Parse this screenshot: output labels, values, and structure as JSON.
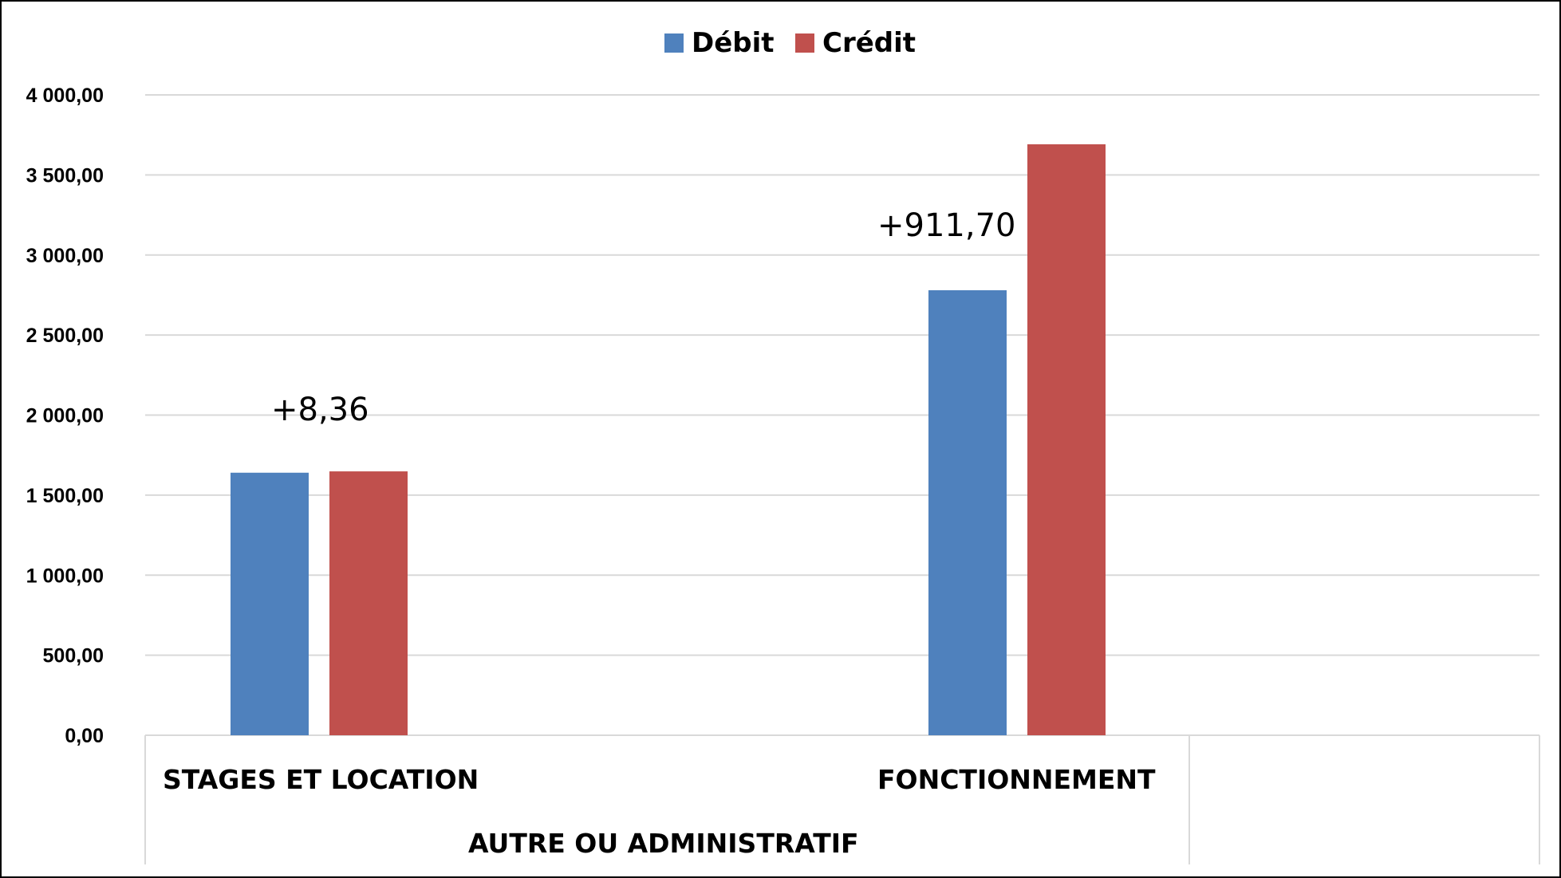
{
  "chart_data": {
    "type": "bar",
    "categories": [
      "STAGES ET  LOCATION",
      "FONCTIONNEMENT"
    ],
    "group_label": "AUTRE  OU  ADMINISTRATIF",
    "series": [
      {
        "name": "Débit",
        "color": "#4f81bd",
        "values": [
          1640,
          2780
        ]
      },
      {
        "name": "Crédit",
        "color": "#c0504d",
        "values": [
          1648.36,
          3691.7
        ]
      }
    ],
    "annotations": [
      "+8,36",
      "+911,70"
    ],
    "y_ticks": [
      "0,00",
      "500,00",
      "1 000,00",
      "1 500,00",
      "2 000,00",
      "2 500,00",
      "3 000,00",
      "3 500,00",
      "4 000,00"
    ],
    "ylim": [
      0,
      4000
    ],
    "grid": true,
    "legend_position": "top-center",
    "title": "",
    "xlabel": "",
    "ylabel": ""
  }
}
